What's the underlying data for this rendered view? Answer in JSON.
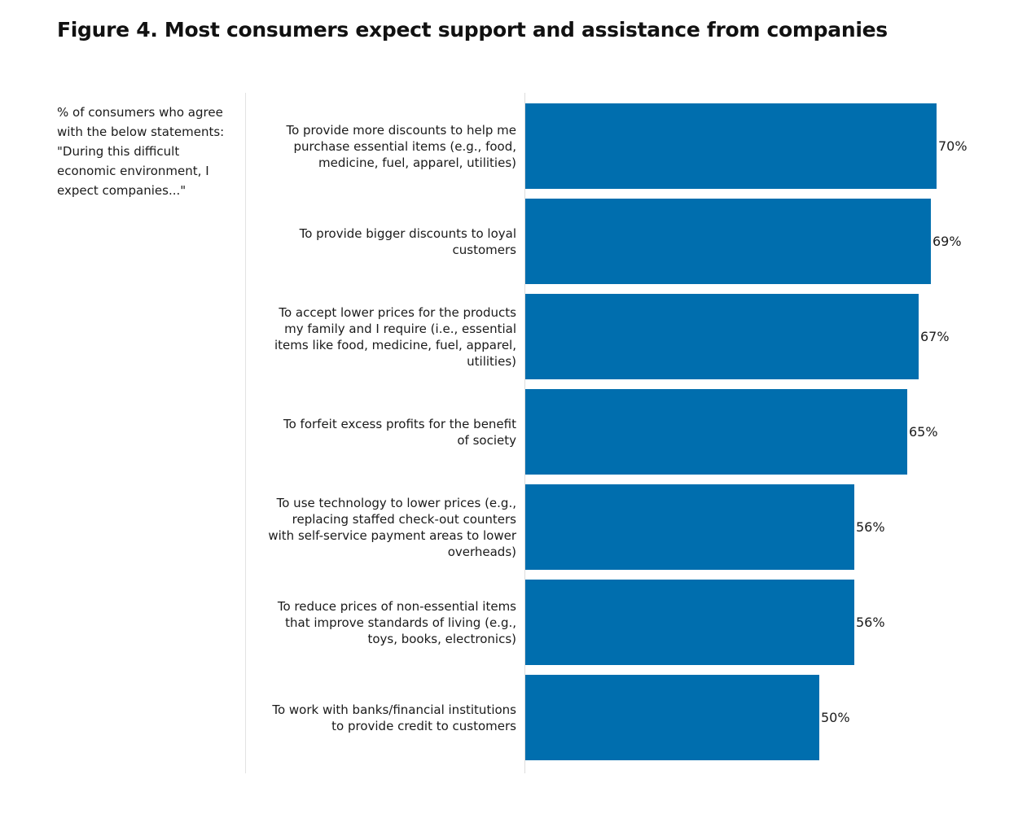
{
  "title": "Figure 4. Most consumers expect support and assistance from companies",
  "subtitle": "% of consumers who agree with the below statements: \"During this difficult economic environment, I expect companies...\"",
  "colors": {
    "bar": "#006eae"
  },
  "chart_data": {
    "type": "bar",
    "orientation": "horizontal",
    "title": "Figure 4. Most consumers expect support and assistance from companies",
    "xlabel": "",
    "ylabel": "",
    "unit": "%",
    "xlim": [
      0,
      70
    ],
    "grid": false,
    "legend": "none",
    "categories": [
      "To provide more discounts to help me purchase essential items (e.g., food, medicine, fuel, apparel, utilities)",
      "To provide bigger discounts to loyal customers",
      "To accept lower prices for the products my family and I require (i.e., essential items like food, medicine, fuel, apparel, utilities)",
      "To forfeit excess profits for the benefit of society",
      "To use technology to lower prices (e.g., replacing staffed check-out counters with self-service payment areas to lower overheads)",
      "To reduce prices of non-essential items that improve standards of living (e.g., toys, books, electronics)",
      "To work with banks/financial institutions to provide credit to customers"
    ],
    "values": [
      70,
      69,
      67,
      65,
      56,
      56,
      50
    ],
    "value_labels": [
      "70%",
      "69%",
      "67%",
      "65%",
      "56%",
      "56%",
      "50%"
    ]
  }
}
